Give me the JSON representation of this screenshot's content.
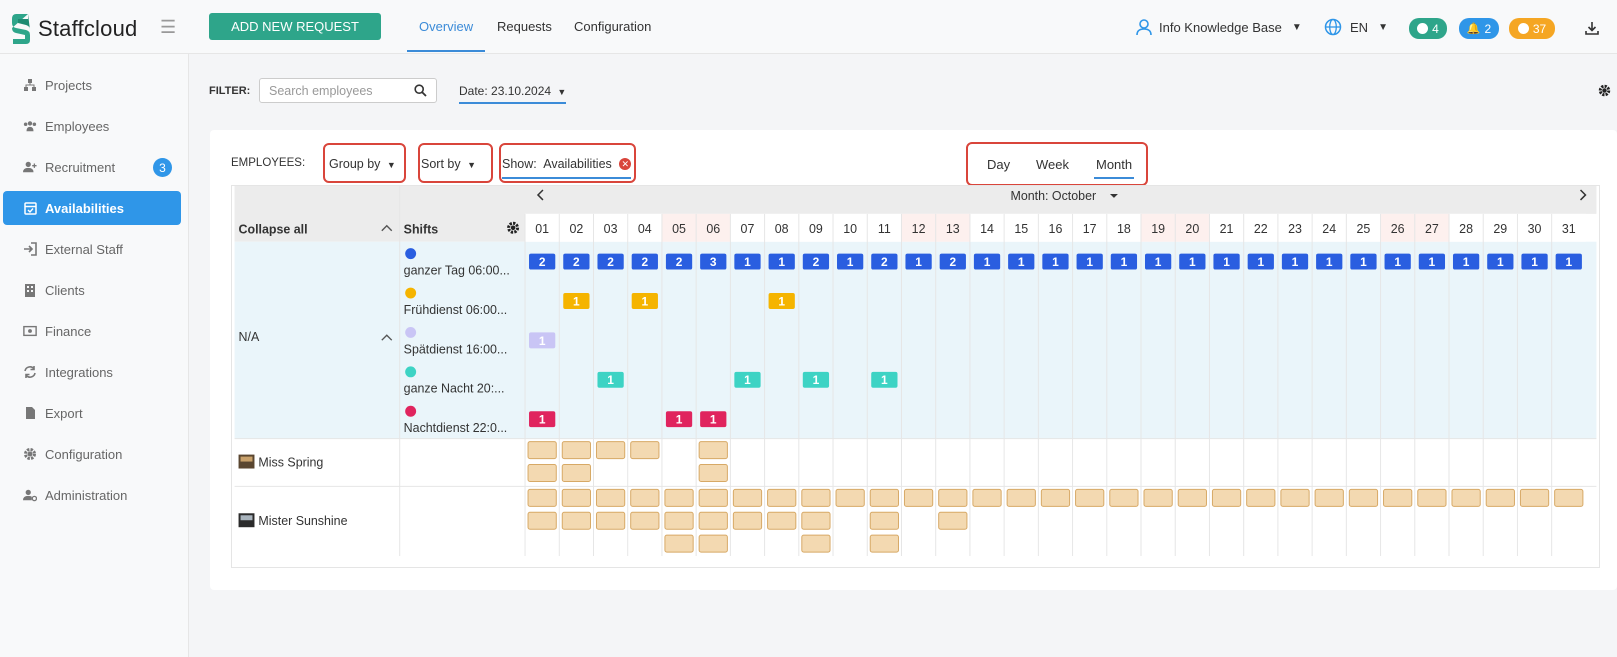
{
  "app": {
    "name": "Staffcloud"
  },
  "header": {
    "add_request_label": "ADD NEW REQUEST",
    "tabs": [
      {
        "label": "Overview",
        "active": true
      },
      {
        "label": "Requests"
      },
      {
        "label": "Configuration"
      }
    ],
    "user_label": "Info Knowledge Base",
    "language": "EN",
    "badges": [
      {
        "icon": "chat-icon",
        "count": "4",
        "color": "#2ea58a"
      },
      {
        "icon": "bell-icon",
        "count": "2",
        "color": "#2f96e8"
      },
      {
        "icon": "clock-icon",
        "count": "37",
        "color": "#f5a623"
      }
    ]
  },
  "sidebar": {
    "items": [
      {
        "label": "Projects",
        "icon": "projects-icon"
      },
      {
        "label": "Employees",
        "icon": "employees-icon"
      },
      {
        "label": "Recruitment",
        "icon": "recruitment-icon",
        "badge": "3"
      },
      {
        "label": "Availabilities",
        "icon": "calendar-icon",
        "active": true
      },
      {
        "label": "External Staff",
        "icon": "sign-in-icon"
      },
      {
        "label": "Clients",
        "icon": "building-icon"
      },
      {
        "label": "Finance",
        "icon": "money-icon"
      },
      {
        "label": "Integrations",
        "icon": "sync-icon"
      },
      {
        "label": "Export",
        "icon": "file-icon"
      },
      {
        "label": "Configuration",
        "icon": "gear-icon"
      },
      {
        "label": "Administration",
        "icon": "user-cog-icon"
      }
    ]
  },
  "filter": {
    "label": "FILTER:",
    "search_placeholder": "Search employees",
    "date_label": "Date: 23.10.2024"
  },
  "controls": {
    "employees_label": "EMPLOYEES:",
    "group_by": "Group by",
    "sort_by": "Sort by",
    "show_prefix": "Show:",
    "show_value": "Availabilities",
    "views": [
      {
        "label": "Day"
      },
      {
        "label": "Week"
      },
      {
        "label": "Month",
        "active": true
      }
    ]
  },
  "calendar": {
    "month_label": "Month: October",
    "collapse_all": "Collapse all",
    "shifts_header": "Shifts",
    "days": [
      "01",
      "02",
      "03",
      "04",
      "05",
      "06",
      "07",
      "08",
      "09",
      "10",
      "11",
      "12",
      "13",
      "14",
      "15",
      "16",
      "17",
      "18",
      "19",
      "20",
      "21",
      "22",
      "23",
      "24",
      "25",
      "26",
      "27",
      "28",
      "29",
      "30",
      "31"
    ],
    "weekend_days": [
      "05",
      "06",
      "12",
      "13",
      "19",
      "20",
      "26",
      "27"
    ],
    "group_label": "N/A",
    "shifts": [
      {
        "name": "ganzer Tag 06:00...",
        "color": "#2a5ee0",
        "counts": [
          "2",
          "2",
          "2",
          "2",
          "2",
          "3",
          "1",
          "1",
          "2",
          "1",
          "2",
          "1",
          "2",
          "1",
          "1",
          "1",
          "1",
          "1",
          "1",
          "1",
          "1",
          "1",
          "1",
          "1",
          "1",
          "1",
          "1",
          "1",
          "1",
          "1",
          "1"
        ]
      },
      {
        "name": "Frühdienst 06:00...",
        "color": "#f5b400",
        "counts": [
          "",
          "1",
          "",
          "1",
          "",
          "",
          "",
          "1",
          "",
          "",
          "",
          "",
          "",
          "",
          "",
          "",
          "",
          "",
          "",
          "",
          "",
          "",
          "",
          "",
          "",
          "",
          "",
          "",
          "",
          "",
          ""
        ]
      },
      {
        "name": "Spätdienst 16:00...",
        "color": "#c9c5f5",
        "text_color": "#ffffff",
        "counts": [
          "1",
          "",
          "",
          "",
          "",
          "",
          "",
          "",
          "",
          "",
          "",
          "",
          "",
          "",
          "",
          "",
          "",
          "",
          "",
          "",
          "",
          "",
          "",
          "",
          "",
          "",
          "",
          "",
          "",
          "",
          ""
        ]
      },
      {
        "name": "ganze Nacht 20:...",
        "color": "#3dd3c4",
        "counts": [
          "",
          "",
          "1",
          "",
          "",
          "",
          "1",
          "",
          "1",
          "",
          "1",
          "",
          "",
          "",
          "",
          "",
          "",
          "",
          "",
          "",
          "",
          "",
          "",
          "",
          "",
          "",
          "",
          "",
          "",
          "",
          ""
        ]
      },
      {
        "name": "Nachtdienst 22:0...",
        "color": "#e0245e",
        "counts": [
          "1",
          "",
          "",
          "",
          "1",
          "1",
          "",
          "",
          "",
          "",
          "",
          "",
          "",
          "",
          "",
          "",
          "",
          "",
          "",
          "",
          "",
          "",
          "",
          "",
          "",
          "",
          "",
          "",
          "",
          "",
          ""
        ]
      }
    ],
    "employees": [
      {
        "name": "Miss Spring",
        "avatar": "avatar-spring",
        "blocks": [
          2,
          2,
          1,
          1,
          0,
          2,
          0,
          0,
          0,
          0,
          0,
          0,
          0,
          0,
          0,
          0,
          0,
          0,
          0,
          0,
          0,
          0,
          0,
          0,
          0,
          0,
          0,
          0,
          0,
          0,
          0
        ]
      },
      {
        "name": "Mister Sunshine",
        "avatar": "avatar-sunshine",
        "blocks": [
          2,
          2,
          2,
          2,
          3,
          3,
          2,
          2,
          3,
          1,
          3,
          1,
          2,
          1,
          1,
          1,
          1,
          1,
          1,
          1,
          1,
          1,
          1,
          1,
          1,
          1,
          1,
          1,
          1,
          1,
          1
        ]
      }
    ]
  }
}
